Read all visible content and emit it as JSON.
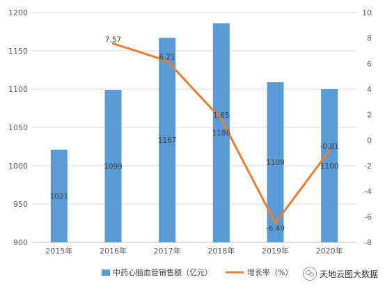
{
  "chart_data": {
    "type": "bar+line",
    "categories": [
      "2015年",
      "2016年",
      "2017年",
      "2018年",
      "2019年",
      "2020年"
    ],
    "series": [
      {
        "name": "中药心脑血管销售额（亿元）",
        "type": "bar",
        "axis": "left",
        "color": "#5b9bd5",
        "values": [
          1021,
          1099,
          1167,
          1186,
          1109,
          1100
        ],
        "labels": [
          "1021",
          "1099",
          "1167",
          "1186",
          "1109",
          "1100"
        ]
      },
      {
        "name": "增长率（%）",
        "type": "line",
        "axis": "right",
        "color": "#ed7d31",
        "values": [
          null,
          7.57,
          6.21,
          1.65,
          -6.49,
          -0.81
        ],
        "labels": [
          "",
          "7.57",
          "6.21",
          "1.65",
          "-6.49",
          "-0.81"
        ]
      }
    ],
    "y_left": {
      "min": 900,
      "max": 1200,
      "ticks": [
        "900",
        "950",
        "1000",
        "1050",
        "1100",
        "1150",
        "1200"
      ]
    },
    "y_right": {
      "min": -8,
      "max": 10,
      "ticks": [
        "-8",
        "-6",
        "-4",
        "-2",
        "0",
        "2",
        "4",
        "6",
        "8",
        "10"
      ]
    },
    "grid": true,
    "legend_position": "bottom"
  },
  "watermark": {
    "text": "天地云图大数据",
    "icon": "wechat-icon"
  }
}
